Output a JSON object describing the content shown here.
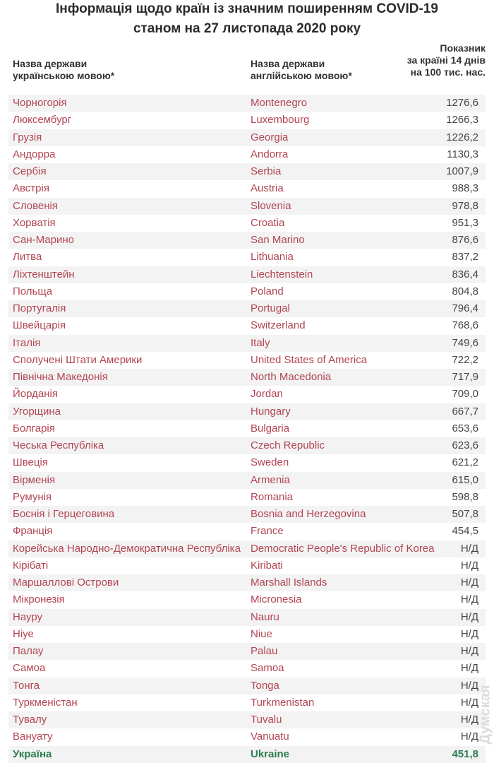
{
  "header": {
    "title_lines": [
      "Інформація щодо країн із значним поширенням COVID-19",
      "станом на 27 листопада 2020 року"
    ]
  },
  "table": {
    "columns": [
      [
        "Назва держави",
        "українською мовою*"
      ],
      [
        "Назва держави",
        "англійською мовою*"
      ],
      [
        "Показник",
        "за країні 14 днів",
        "на 100 тис. нас."
      ]
    ],
    "rows": [
      [
        "Чорногорія",
        "Montenegro",
        "1276,6"
      ],
      [
        "Люксембург",
        "Luxembourg",
        "1266,3"
      ],
      [
        "Грузія",
        "Georgia",
        "1226,2"
      ],
      [
        "Андорра",
        "Andorra",
        "1130,3"
      ],
      [
        "Сербія",
        "Serbia",
        "1007,9"
      ],
      [
        "Австрія",
        "Austria",
        "988,3"
      ],
      [
        "Словенія",
        "Slovenia",
        "978,8"
      ],
      [
        "Хорватія",
        "Croatia",
        "951,3"
      ],
      [
        "Сан-Марино",
        "San Marino",
        "876,6"
      ],
      [
        "Литва",
        "Lithuania",
        "837,2"
      ],
      [
        "Ліхтенштейн",
        "Liechtenstein",
        "836,4"
      ],
      [
        "Польща",
        "Poland",
        "804,8"
      ],
      [
        "Португалія",
        "Portugal",
        "796,4"
      ],
      [
        "Швейцарія",
        "Switzerland",
        "768,6"
      ],
      [
        "Італія",
        "Italy",
        "749,6"
      ],
      [
        "Сполучені Штати Америки",
        "United States of America",
        "722,2"
      ],
      [
        "Північна Македонія",
        "North Macedonia",
        "717,9"
      ],
      [
        "Йорданія",
        "Jordan",
        "709,0"
      ],
      [
        "Угорщина",
        "Hungary",
        "667,7"
      ],
      [
        "Болгарія",
        "Bulgaria",
        "653,6"
      ],
      [
        "Чеська Республіка",
        "Czech Republic",
        "623,6"
      ],
      [
        "Швеція",
        "Sweden",
        "621,2"
      ],
      [
        "Вірменія",
        "Armenia",
        "615,0"
      ],
      [
        "Румунія",
        "Romania",
        "598,8"
      ],
      [
        "Боснія і Герцеговина",
        "Bosnia and Herzegovina",
        "507,8"
      ],
      [
        "Франція",
        "France",
        "454,5"
      ],
      [
        "Корейська Народно-Демократична Республіка",
        "Democratic People's Republic of Korea",
        "Н/Д"
      ],
      [
        "Кірібаті",
        "Kiribati",
        "Н/Д"
      ],
      [
        "Маршаллові Острови",
        "Marshall Islands",
        "Н/Д"
      ],
      [
        "Мікронезія",
        "Micronesia",
        "Н/Д"
      ],
      [
        "Науру",
        "Nauru",
        "Н/Д"
      ],
      [
        "Ніуе",
        "Niue",
        "Н/Д"
      ],
      [
        "Палау",
        "Palau",
        "Н/Д"
      ],
      [
        "Самоа",
        "Samoa",
        "Н/Д"
      ],
      [
        "Тонга",
        "Tonga",
        "Н/Д"
      ],
      [
        "Туркменістан",
        "Turkmenistan",
        "Н/Д"
      ],
      [
        "Тувалу",
        "Tuvalu",
        "Н/Д"
      ],
      [
        "Вануату",
        "Vanuatu",
        "Н/Д"
      ]
    ],
    "footer_row": [
      "Україна",
      "Ukraine",
      "451,8"
    ]
  },
  "watermark": "Думская"
}
